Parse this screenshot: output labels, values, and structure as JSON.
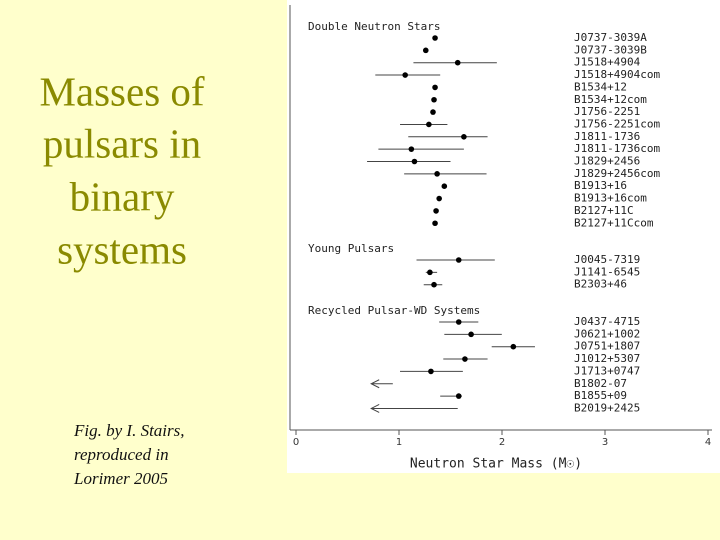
{
  "slide": {
    "title": [
      "Masses of",
      "pulsars in",
      "binary",
      "systems"
    ],
    "caption": [
      "Fig. by I. Stairs,",
      "reproduced in",
      "Lorimer 2005"
    ]
  },
  "chart_data": {
    "type": "dot-errorbar",
    "x_label": "Neutron Star Mass (M☉)",
    "xlim": [
      0,
      4
    ],
    "xticks": [
      0,
      1,
      2,
      3,
      4
    ],
    "color": "#000000",
    "groups": [
      {
        "name": "Double Neutron Stars",
        "categories": [
          "J0737-3039A",
          "J0737-3039B",
          "J1518+4904",
          "J1518+4904com",
          "B1534+12",
          "B1534+12com",
          "J1756-2251",
          "J1756-2251com",
          "J1811-1736",
          "J1811-1736com",
          "J1829+2456",
          "J1829+2456com",
          "B1913+16",
          "B1913+16com",
          "B2127+11C",
          "B2127+11Ccom"
        ],
        "values": [
          1.35,
          1.26,
          1.57,
          1.06,
          1.35,
          1.34,
          1.33,
          1.29,
          1.63,
          1.12,
          1.15,
          1.37,
          1.44,
          1.39,
          1.36,
          1.35
        ],
        "lower": [
          null,
          null,
          1.14,
          0.77,
          null,
          null,
          null,
          1.01,
          1.09,
          0.8,
          0.69,
          1.05,
          null,
          null,
          null,
          null
        ],
        "upper": [
          null,
          null,
          1.95,
          1.4,
          null,
          null,
          null,
          1.47,
          1.86,
          1.63,
          1.5,
          1.85,
          null,
          null,
          null,
          null
        ]
      },
      {
        "name": "Young Pulsars",
        "categories": [
          "J0045-7319",
          "J1141-6545",
          "B2303+46"
        ],
        "values": [
          1.58,
          1.3,
          1.34
        ],
        "lower": [
          1.17,
          1.26,
          1.24
        ],
        "upper": [
          1.93,
          1.37,
          1.42
        ]
      },
      {
        "name": "Recycled Pulsar-WD Systems",
        "categories": [
          "J0437-4715",
          "J0621+1002",
          "J0751+1807",
          "J1012+5307",
          "J1713+0747",
          "B1802-07",
          "B1855+09",
          "B2019+2425"
        ],
        "values": [
          1.58,
          1.7,
          2.11,
          1.64,
          1.31,
          null,
          1.58,
          null
        ],
        "lower": [
          1.39,
          1.44,
          1.9,
          1.43,
          1.01,
          null,
          1.4,
          null
        ],
        "upper": [
          1.77,
          1.998,
          2.32,
          1.86,
          1.62,
          0.94,
          1.61,
          1.57
        ]
      }
    ]
  }
}
